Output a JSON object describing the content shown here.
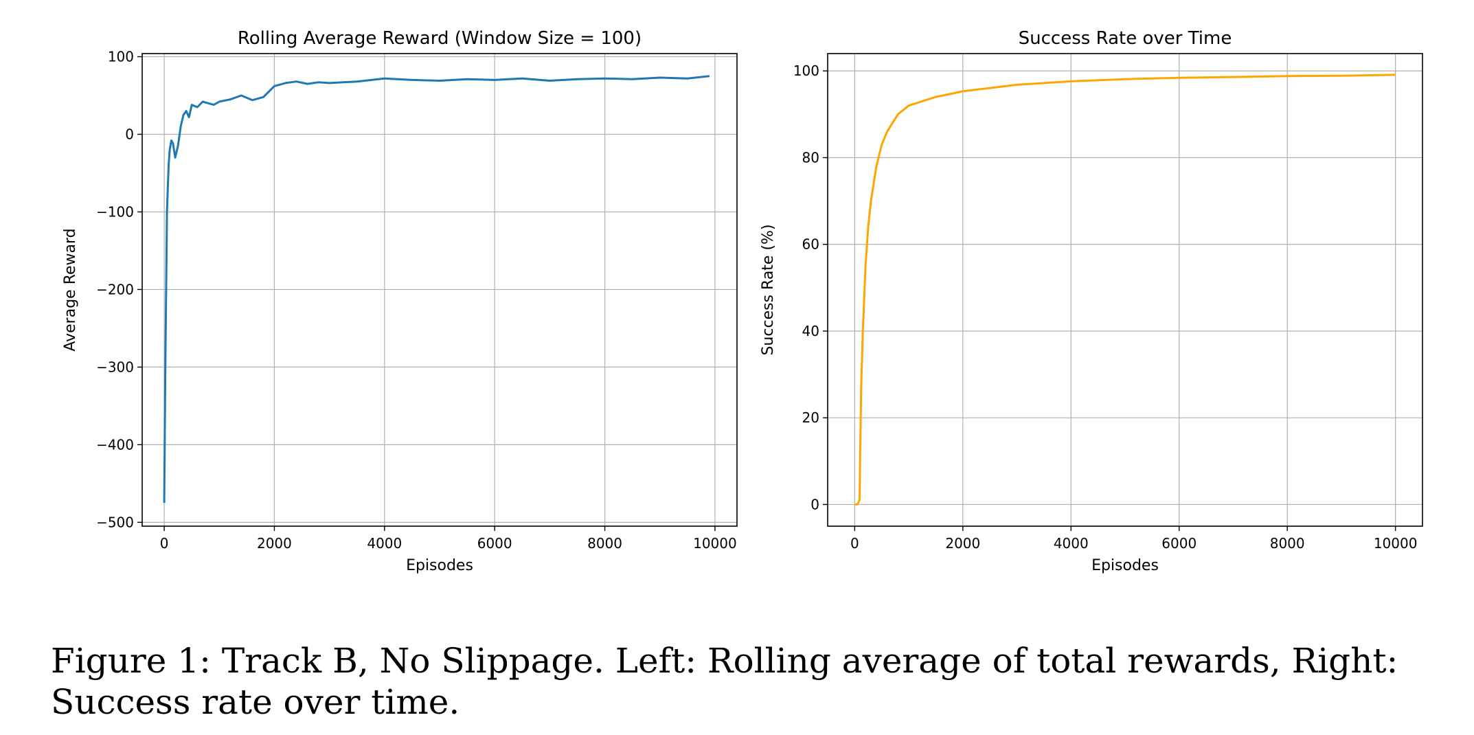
{
  "chart_data": [
    {
      "type": "line",
      "title": "Rolling Average Reward (Window Size = 100)",
      "xlabel": "Episodes",
      "ylabel": "Average Reward",
      "xlim": [
        -400,
        10400
      ],
      "ylim": [
        -505,
        104
      ],
      "xticks": [
        0,
        2000,
        4000,
        6000,
        8000,
        10000
      ],
      "xtick_labels": [
        "0",
        "2000",
        "4000",
        "6000",
        "8000",
        "10000"
      ],
      "yticks": [
        -500,
        -400,
        -300,
        -200,
        -100,
        0,
        100
      ],
      "ytick_labels": [
        "−500",
        "−400",
        "−300",
        "−200",
        "−100",
        "0",
        "100"
      ],
      "grid": true,
      "legend": "none",
      "series": [
        {
          "color": "#1f77b4",
          "x": [
            0,
            20,
            50,
            80,
            100,
            130,
            160,
            200,
            250,
            300,
            350,
            400,
            450,
            500,
            600,
            700,
            800,
            900,
            1000,
            1200,
            1400,
            1600,
            1800,
            1900,
            2000,
            2200,
            2400,
            2600,
            2800,
            3000,
            3500,
            4000,
            4500,
            5000,
            5500,
            6000,
            6500,
            7000,
            7500,
            8000,
            8500,
            9000,
            9500,
            9900
          ],
          "y": [
            -475,
            -300,
            -100,
            -40,
            -20,
            -8,
            -12,
            -30,
            -15,
            10,
            25,
            30,
            22,
            38,
            35,
            42,
            40,
            38,
            42,
            45,
            50,
            44,
            48,
            55,
            62,
            66,
            68,
            65,
            67,
            66,
            68,
            72,
            70,
            69,
            71,
            70,
            72,
            69,
            71,
            72,
            71,
            73,
            72,
            75
          ]
        }
      ]
    },
    {
      "type": "line",
      "title": "Success Rate over Time",
      "xlabel": "Episodes",
      "ylabel": "Success Rate (%)",
      "xlim": [
        -500,
        10500
      ],
      "ylim": [
        -5,
        104
      ],
      "xticks": [
        0,
        2000,
        4000,
        6000,
        8000,
        10000
      ],
      "xtick_labels": [
        "0",
        "2000",
        "4000",
        "6000",
        "8000",
        "10000"
      ],
      "yticks": [
        0,
        20,
        40,
        60,
        80,
        100
      ],
      "ytick_labels": [
        "0",
        "20",
        "40",
        "60",
        "80",
        "100"
      ],
      "grid": true,
      "legend": "none",
      "series": [
        {
          "color": "#ffa500",
          "x": [
            0,
            50,
            90,
            100,
            120,
            150,
            200,
            250,
            300,
            400,
            500,
            600,
            800,
            1000,
            1500,
            2000,
            3000,
            4000,
            5000,
            6000,
            7000,
            8000,
            9000,
            10000
          ],
          "y": [
            0,
            0,
            1,
            10,
            27,
            40,
            55,
            64,
            70,
            78,
            83,
            86,
            90,
            92,
            94,
            95.3,
            96.8,
            97.6,
            98.1,
            98.4,
            98.6,
            98.8,
            98.9,
            99.1
          ]
        }
      ]
    }
  ],
  "caption": "Figure 1: Track B, No Slippage. Left: Rolling average of total rewards, Right: Success rate over time."
}
